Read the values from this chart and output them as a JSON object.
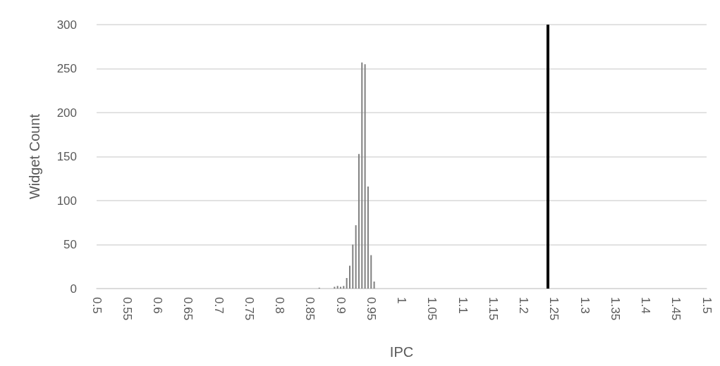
{
  "chart_data": {
    "type": "bar",
    "xlabel": "IPC",
    "ylabel": "Widget Count",
    "x": [
      0.865,
      0.89,
      0.895,
      0.9,
      0.905,
      0.91,
      0.915,
      0.92,
      0.925,
      0.93,
      0.935,
      0.94,
      0.945,
      0.95,
      0.955
    ],
    "values": [
      1,
      2,
      3,
      2,
      3,
      12,
      26,
      50,
      72,
      153,
      257,
      255,
      116,
      38,
      8
    ],
    "color": "#808080",
    "xlim": [
      0.5,
      1.5
    ],
    "xticks": [
      0.5,
      0.55,
      0.6,
      0.65,
      0.7,
      0.75,
      0.8,
      0.85,
      0.9,
      0.95,
      1,
      1.05,
      1.1,
      1.15,
      1.2,
      1.25,
      1.3,
      1.35,
      1.4,
      1.45,
      1.5
    ],
    "ylim": [
      0,
      300
    ],
    "yticks": [
      0,
      50,
      100,
      150,
      200,
      250,
      300
    ],
    "ref_lines": [
      {
        "axis": "x",
        "value": 1.237,
        "color": "#000000"
      }
    ],
    "grid": "y"
  }
}
